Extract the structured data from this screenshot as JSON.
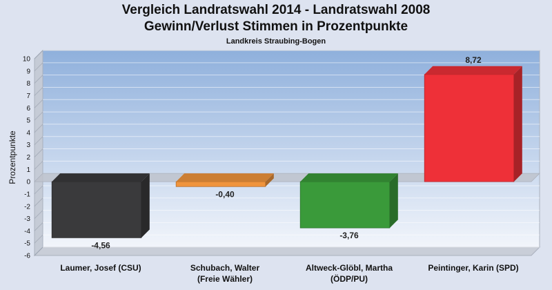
{
  "chart_data": {
    "type": "bar",
    "title": "Vergleich Landratswahl 2014 - Landratswahl 2008",
    "subtitle_main": "Gewinn/Verlust Stimmen in Prozentpunkte",
    "subtitle": "Landkreis Straubing-Bogen",
    "ylabel": "Prozentpunkte",
    "xlabel": "",
    "ylim": [
      -6,
      10
    ],
    "yticks": [
      10,
      9,
      8,
      7,
      6,
      5,
      4,
      3,
      2,
      1,
      0,
      -1,
      -2,
      -3,
      -4,
      -5,
      -6
    ],
    "grid": true,
    "categories": [
      [
        "Laumer, Josef (CSU)"
      ],
      [
        "Schubach, Walter",
        "(Freie Wähler)"
      ],
      [
        "Altweck-Glöbl, Martha",
        "(ÖDP/PU)"
      ],
      [
        "Peintinger, Karin (SPD)"
      ]
    ],
    "values": [
      -4.56,
      -0.4,
      -3.76,
      8.72
    ],
    "value_labels": [
      "-4,56",
      "-0,40",
      "-3,76",
      "8,72"
    ],
    "colors": [
      "#3a3a3c",
      "#f0943c",
      "#3a9a3a",
      "#ee3038"
    ]
  }
}
